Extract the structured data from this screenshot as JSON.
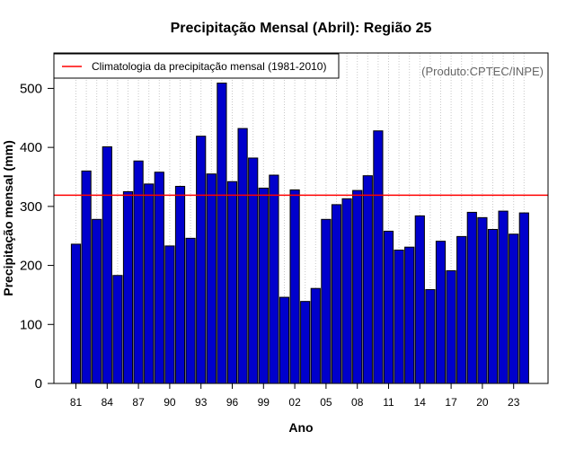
{
  "chart_data": {
    "type": "bar",
    "title": "Precipitação Mensal (Abril): Região 25",
    "xlabel": "Ano",
    "ylabel": "Precipitação mensal (mm)",
    "source_label": "(Produto:CPTEC/INPE)",
    "ylim": [
      0,
      560
    ],
    "yticks": [
      0,
      100,
      200,
      300,
      400,
      500
    ],
    "grid": true,
    "legend_position": "top-left",
    "bar_color": "#0000cc",
    "bar_edge_color": "#000000",
    "categories": [
      "1981",
      "1982",
      "1983",
      "1984",
      "1985",
      "1986",
      "1987",
      "1988",
      "1989",
      "1990",
      "1991",
      "1992",
      "1993",
      "1994",
      "1995",
      "1996",
      "1997",
      "1998",
      "1999",
      "2000",
      "2001",
      "2002",
      "2003",
      "2004",
      "2005",
      "2006",
      "2007",
      "2008",
      "2009",
      "2010",
      "2011",
      "2012",
      "2013",
      "2014",
      "2015",
      "2016",
      "2017",
      "2018",
      "2019",
      "2020",
      "2021",
      "2022",
      "2023",
      "2024"
    ],
    "values": [
      236,
      360,
      278,
      401,
      183,
      325,
      377,
      338,
      358,
      233,
      334,
      246,
      419,
      355,
      509,
      342,
      432,
      382,
      331,
      353,
      146,
      328,
      139,
      161,
      278,
      303,
      313,
      327,
      352,
      428,
      258,
      226,
      231,
      284,
      159,
      241,
      191,
      249,
      290,
      281,
      261,
      292,
      253,
      289
    ],
    "xtick_labels": [
      "81",
      "84",
      "87",
      "90",
      "93",
      "96",
      "99",
      "02",
      "05",
      "08",
      "11",
      "14",
      "17",
      "20",
      "23"
    ],
    "xtick_every": 3,
    "reference_line": {
      "label": "Climatologia da precipitação mensal (1981-2010)",
      "value": 319,
      "color": "#ff0000"
    }
  }
}
